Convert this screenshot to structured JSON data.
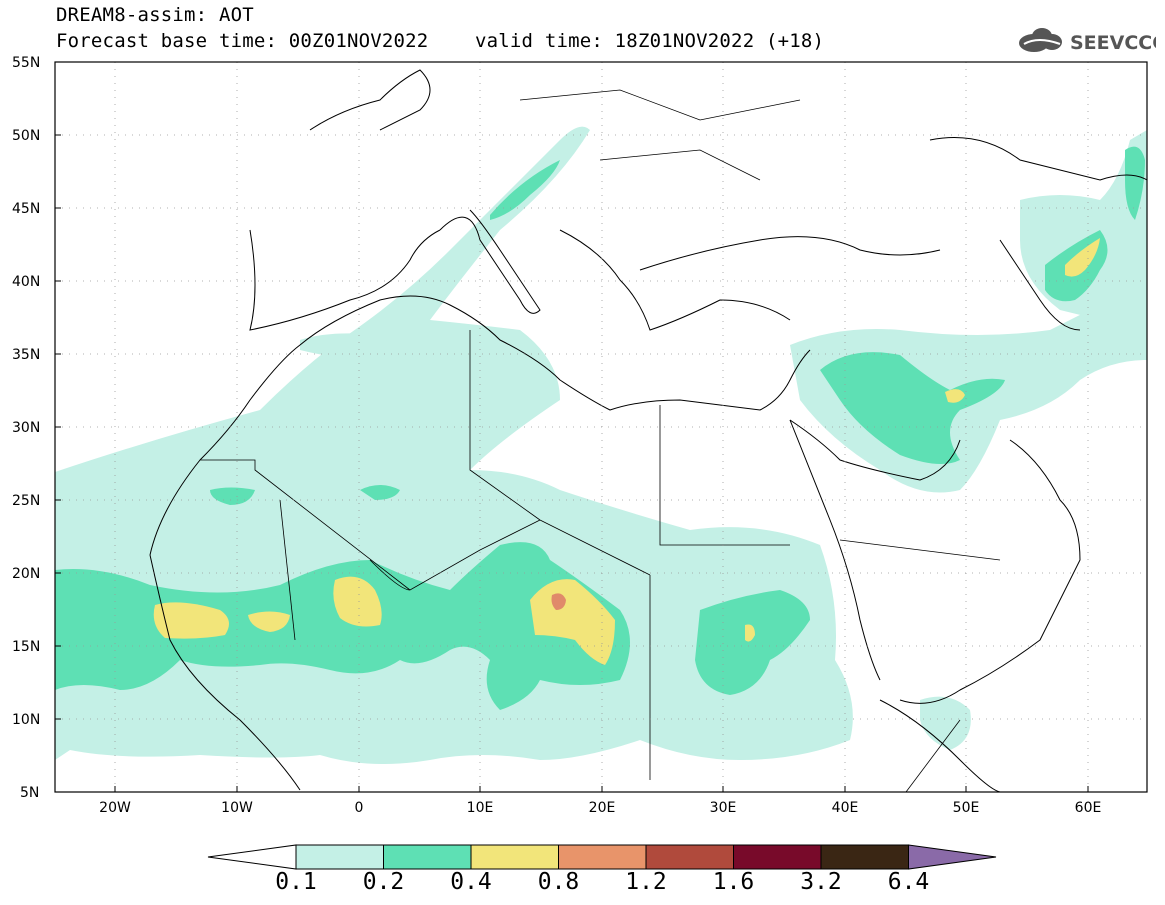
{
  "header": {
    "line1": "DREAM8-assim: AOT",
    "line2": "Forecast base time: 00Z01NOV2022    valid time: 18Z01NOV2022 (+18)"
  },
  "logo": {
    "text": "SEEVCCC",
    "icon": "cloud-icon"
  },
  "map": {
    "lat_labels": [
      "55N",
      "50N",
      "45N",
      "40N",
      "35N",
      "30N",
      "25N",
      "20N",
      "15N",
      "10N",
      "5N"
    ],
    "lon_labels": [
      "20W",
      "10W",
      "0",
      "10E",
      "20E",
      "30E",
      "40E",
      "50E",
      "60E"
    ],
    "lon_range": [
      -25,
      65
    ],
    "lat_range": [
      5,
      55
    ]
  },
  "colorbar": {
    "levels": [
      "0.1",
      "0.2",
      "0.4",
      "0.8",
      "1.2",
      "1.6",
      "3.2",
      "6.4"
    ],
    "colors": [
      "#ffffff",
      "#c4f0e6",
      "#5ee0b4",
      "#f2e57a",
      "#e8946a",
      "#b04a3c",
      "#780a2a",
      "#3a2614",
      "#8a6aa8"
    ]
  },
  "colors": {
    "c1": "#c4f0e6",
    "c2": "#5ee0b4",
    "c3": "#f2e57a",
    "c4": "#e08a6a"
  }
}
